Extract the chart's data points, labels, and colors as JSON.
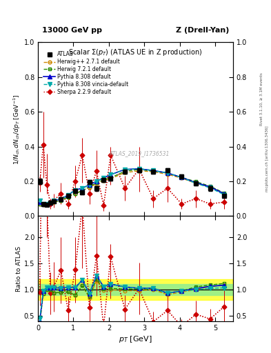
{
  "title_left": "13000 GeV pp",
  "title_right": "Z (Drell-Yan)",
  "plot_title": "Scalar $\\Sigma(p_T)$ (ATLAS UE in Z production)",
  "xlabel": "$p_T$ [GeV]",
  "ylabel_main": "$1/N_{\\rm ch}\\,dN_{\\rm ch}/dp_T$ [GeV$^{-1}$]",
  "ylabel_ratio": "Ratio to ATLAS",
  "watermark": "ATLAS_2019_I1736531",
  "right_label1": "Rivet 3.1.10, ≥ 3.1M events",
  "right_label2": "mcplots.cern.ch [arXiv:1306.3436]",
  "xlim": [
    0.0,
    5.5
  ],
  "ylim_main": [
    0.0,
    1.0
  ],
  "ylim_ratio": [
    0.4,
    2.4
  ],
  "yticks_main": [
    0.0,
    0.2,
    0.4,
    0.6,
    0.8,
    1.0
  ],
  "yticks_ratio": [
    0.5,
    1.0,
    1.5,
    2.0
  ],
  "atlas_x": [
    0.05,
    0.15,
    0.25,
    0.35,
    0.45,
    0.65,
    0.85,
    1.05,
    1.25,
    1.45,
    1.65,
    1.85,
    2.05,
    2.45,
    2.85,
    3.25,
    3.65,
    4.05,
    4.45,
    4.85,
    5.25
  ],
  "atlas_y": [
    0.2,
    0.07,
    0.065,
    0.075,
    0.085,
    0.095,
    0.115,
    0.145,
    0.135,
    0.195,
    0.158,
    0.208,
    0.215,
    0.255,
    0.265,
    0.255,
    0.265,
    0.228,
    0.188,
    0.158,
    0.118
  ],
  "atlas_yerr": [
    0.015,
    0.008,
    0.008,
    0.008,
    0.008,
    0.008,
    0.008,
    0.01,
    0.012,
    0.012,
    0.012,
    0.012,
    0.012,
    0.012,
    0.012,
    0.012,
    0.012,
    0.012,
    0.012,
    0.012,
    0.012
  ],
  "herwig1_x": [
    0.05,
    0.15,
    0.25,
    0.35,
    0.45,
    0.65,
    0.85,
    1.05,
    1.25,
    1.45,
    1.65,
    1.85,
    2.05,
    2.45,
    2.85,
    3.25,
    3.65,
    4.05,
    4.45,
    4.85,
    5.25
  ],
  "herwig1_y": [
    0.07,
    0.065,
    0.065,
    0.075,
    0.08,
    0.09,
    0.11,
    0.13,
    0.145,
    0.165,
    0.185,
    0.205,
    0.215,
    0.25,
    0.26,
    0.255,
    0.24,
    0.218,
    0.188,
    0.168,
    0.128
  ],
  "herwig2_x": [
    0.05,
    0.15,
    0.25,
    0.35,
    0.45,
    0.65,
    0.85,
    1.05,
    1.25,
    1.45,
    1.65,
    1.85,
    2.05,
    2.45,
    2.85,
    3.25,
    3.65,
    4.05,
    4.45,
    4.85,
    5.25
  ],
  "herwig2_y": [
    0.07,
    0.065,
    0.065,
    0.075,
    0.08,
    0.09,
    0.11,
    0.13,
    0.145,
    0.17,
    0.19,
    0.21,
    0.22,
    0.258,
    0.268,
    0.258,
    0.248,
    0.222,
    0.198,
    0.172,
    0.132
  ],
  "pythia1_x": [
    0.05,
    0.15,
    0.25,
    0.35,
    0.45,
    0.65,
    0.85,
    1.05,
    1.25,
    1.45,
    1.65,
    1.85,
    2.05,
    2.45,
    2.85,
    3.25,
    3.65,
    4.05,
    4.45,
    4.85,
    5.25
  ],
  "pythia1_y": [
    0.08,
    0.068,
    0.068,
    0.078,
    0.088,
    0.098,
    0.12,
    0.15,
    0.16,
    0.18,
    0.2,
    0.22,
    0.238,
    0.268,
    0.272,
    0.262,
    0.248,
    0.222,
    0.192,
    0.168,
    0.128
  ],
  "pythia2_x": [
    0.05,
    0.15,
    0.25,
    0.35,
    0.45,
    0.65,
    0.85,
    1.05,
    1.25,
    1.45,
    1.65,
    1.85,
    2.05,
    2.45,
    2.85,
    3.25,
    3.65,
    4.05,
    4.45,
    4.85,
    5.25
  ],
  "pythia2_y": [
    0.09,
    0.068,
    0.068,
    0.078,
    0.088,
    0.098,
    0.12,
    0.15,
    0.16,
    0.18,
    0.2,
    0.22,
    0.238,
    0.268,
    0.272,
    0.262,
    0.248,
    0.222,
    0.188,
    0.162,
    0.122
  ],
  "sherpa_x": [
    0.05,
    0.15,
    0.25,
    0.35,
    0.45,
    0.65,
    0.85,
    1.05,
    1.25,
    1.45,
    1.65,
    1.85,
    2.05,
    2.45,
    2.85,
    3.25,
    3.65,
    4.05,
    4.45,
    4.85,
    5.25
  ],
  "sherpa_y": [
    0.19,
    0.41,
    0.18,
    0.07,
    0.09,
    0.13,
    0.07,
    0.2,
    0.35,
    0.13,
    0.26,
    0.06,
    0.35,
    0.16,
    0.27,
    0.1,
    0.16,
    0.07,
    0.1,
    0.07,
    0.08
  ],
  "sherpa_elo": [
    0.05,
    0.19,
    0.05,
    0.03,
    0.04,
    0.06,
    0.03,
    0.09,
    0.16,
    0.06,
    0.12,
    0.03,
    0.17,
    0.07,
    0.13,
    0.05,
    0.08,
    0.03,
    0.05,
    0.03,
    0.04
  ],
  "sherpa_ehi": [
    0.05,
    0.19,
    0.18,
    0.03,
    0.04,
    0.06,
    0.03,
    0.09,
    0.1,
    0.06,
    0.12,
    0.03,
    0.05,
    0.07,
    0.13,
    0.05,
    0.08,
    0.03,
    0.05,
    0.03,
    0.04
  ],
  "color_atlas": "#000000",
  "color_herwig1": "#cc8800",
  "color_herwig2": "#228800",
  "color_pythia1": "#0000cc",
  "color_pythia2": "#00aaaa",
  "color_sherpa": "#cc0000",
  "color_band_outer": "#ffff00",
  "color_band_inner": "#90ee90",
  "bg_color": "#f8f8f8"
}
